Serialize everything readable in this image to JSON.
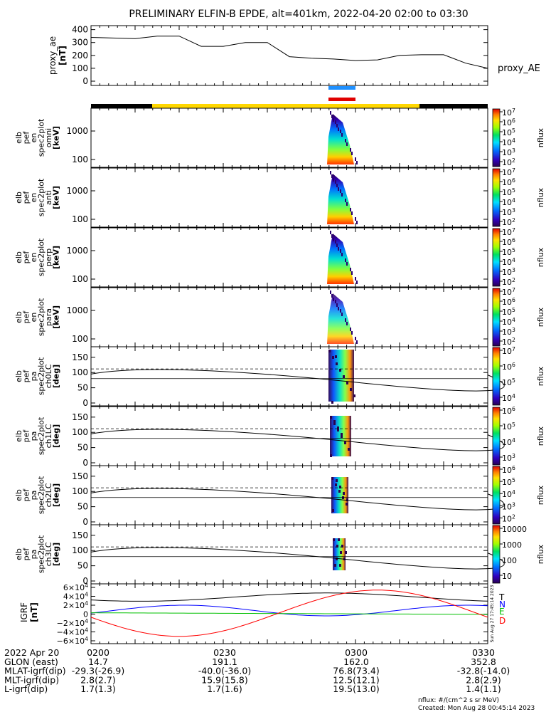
{
  "title": "PRELIMINARY ELFIN-B EPDE, alt=401km, 2022-04-20 02:00 to 03:30",
  "ae_panel": {
    "ylabel": [
      "proxy_ae",
      "[nT]"
    ],
    "yticks": [
      "400",
      "300",
      "200",
      "100",
      "0"
    ],
    "yrange": [
      0,
      420
    ],
    "legend": "proxy_AE",
    "series_minutes": [
      0,
      5,
      10,
      15,
      20,
      25,
      30,
      35,
      40,
      45,
      50,
      55,
      60,
      65,
      70,
      75,
      80,
      85,
      90
    ],
    "series_values": [
      340,
      335,
      330,
      350,
      350,
      270,
      270,
      300,
      300,
      190,
      178,
      172,
      160,
      165,
      200,
      205,
      205,
      140,
      100
    ]
  },
  "orbit_bars": {
    "blue_label": "",
    "red_label": ""
  },
  "spec_panels": [
    {
      "ylabel": [
        "elb",
        "pef",
        "en",
        "spec2plot",
        "omni",
        "[keV]"
      ],
      "yticks": [
        "1000",
        "100"
      ],
      "cb_ticks": [
        "10^7",
        "10^6",
        "10^5",
        "10^4",
        "10^3",
        "10^2"
      ],
      "cb_label": "nflux"
    },
    {
      "ylabel": [
        "elb",
        "pef",
        "en",
        "spec2plot",
        "anti",
        "[keV]"
      ],
      "yticks": [
        "1000",
        "100"
      ],
      "cb_ticks": [
        "10^7",
        "10^6",
        "10^5",
        "10^4",
        "10^3",
        "10^2"
      ],
      "cb_label": "nflux"
    },
    {
      "ylabel": [
        "elb",
        "pef",
        "en",
        "spec2plot",
        "perp",
        "[keV]"
      ],
      "yticks": [
        "1000",
        "100"
      ],
      "cb_ticks": [
        "10^7",
        "10^6",
        "10^5",
        "10^4",
        "10^3",
        "10^2"
      ],
      "cb_label": "nflux"
    },
    {
      "ylabel": [
        "elb",
        "pef",
        "en",
        "spec2plot",
        "para",
        "[keV]"
      ],
      "yticks": [
        "1000",
        "100"
      ],
      "cb_ticks": [
        "10^7",
        "10^6",
        "10^5",
        "10^4",
        "10^3",
        "10^2"
      ],
      "cb_label": "nflux"
    }
  ],
  "pa_panels": [
    {
      "ylabel": [
        "elb",
        "pef",
        "pa",
        "spec2plot",
        "ch0LC",
        "[deg]"
      ],
      "yticks": [
        "150",
        "100",
        "50",
        "0"
      ],
      "cb_ticks": [
        "10^7",
        "10^6",
        "10^5",
        "10^4"
      ],
      "cb_label": "nflux"
    },
    {
      "ylabel": [
        "elb",
        "pef",
        "pa",
        "spec2plot",
        "ch1LC",
        "[deg]"
      ],
      "yticks": [
        "150",
        "100",
        "50",
        "0"
      ],
      "cb_ticks": [
        "10^6",
        "10^5",
        "10^4",
        "10^3"
      ],
      "cb_label": "nflux"
    },
    {
      "ylabel": [
        "elb",
        "pef",
        "pa",
        "spec2plot",
        "ch2LC",
        "[deg]"
      ],
      "yticks": [
        "150",
        "100",
        "50",
        "0"
      ],
      "cb_ticks": [
        "10^6",
        "10^5",
        "10^4",
        "10^3",
        "10^2"
      ],
      "cb_label": "nflux"
    },
    {
      "ylabel": [
        "elb",
        "pef",
        "pa",
        "spec2plot",
        "ch3LC",
        "[deg]"
      ],
      "yticks": [
        "150",
        "100",
        "50",
        "0"
      ],
      "cb_ticks": [
        "10000",
        "1000",
        "100",
        "10"
      ],
      "cb_label": "nflux"
    }
  ],
  "igrf_panel": {
    "ylabel": [
      "IGRF",
      "[nT]"
    ],
    "yticks": [
      "6×10^4",
      "4×10^4",
      "2×10^4",
      "0",
      "−2×10^4",
      "−4×10^4",
      "−6×10^4"
    ],
    "legend": [
      {
        "label": "T",
        "color": "#000000"
      },
      {
        "label": "N",
        "color": "#0000ff"
      },
      {
        "label": "E",
        "color": "#00c000"
      },
      {
        "label": "D",
        "color": "#ff0000"
      }
    ],
    "side_text": "Sun Aug 27 17:45:14 2023"
  },
  "footer": {
    "rows": [
      {
        "label": "2022 Apr 20",
        "values": [
          "0200",
          "0230",
          "0300",
          "0330"
        ]
      },
      {
        "label": "GLON (east)",
        "values": [
          "14.7",
          "191.1",
          "162.0",
          "352.8"
        ]
      },
      {
        "label": "MLAT-igrf(dip)",
        "values": [
          "-29.3(-26.9)",
          "-40.0(-36.0)",
          "76.8(73.4)",
          "-32.8(-14.0)"
        ]
      },
      {
        "label": "MLT-igrf(dip)",
        "values": [
          "2.8(2.7)",
          "15.9(15.8)",
          "12.5(12.1)",
          "2.8(2.9)"
        ]
      },
      {
        "label": "L-igrf(dip)",
        "values": [
          "1.7(1.3)",
          "1.7(1.6)",
          "19.5(13.0)",
          "1.4(1.1)"
        ]
      }
    ],
    "units_note": "nflux: #/(cm^2 s sr MeV)",
    "created": "Created: Mon Aug 28 00:45:14 2023"
  },
  "colors": {
    "sunlit_bar": "#ffd700",
    "shadow_bar": "#000000",
    "blue_bar": "#1e90ff",
    "red_bar": "#e00000"
  }
}
